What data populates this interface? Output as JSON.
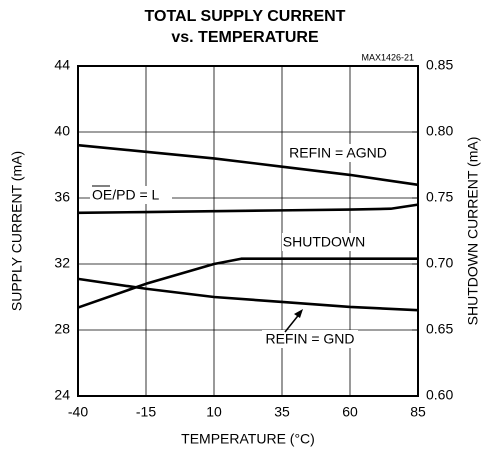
{
  "chart_data": {
    "type": "line",
    "title": [
      "TOTAL SUPPLY CURRENT",
      "vs. TEMPERATURE"
    ],
    "code": "MAX1426-21",
    "xlabel": "TEMPERATURE (°C)",
    "ylabel": "SUPPLY CURRENT (mA)",
    "y2label": "SHUTDOWN CURRENT (mA)",
    "xlim": [
      -40,
      85
    ],
    "xticks": [
      -40,
      -15,
      10,
      35,
      60,
      85
    ],
    "ylim": [
      24,
      44
    ],
    "yticks": [
      24,
      28,
      32,
      36,
      40,
      44
    ],
    "y2lim": [
      0.6,
      0.85
    ],
    "y2ticks": [
      {
        "value": 0.6,
        "label": "0.60"
      },
      0.65,
      {
        "value": 0.7,
        "label": "0.70"
      },
      0.75,
      {
        "value": 0.8,
        "label": "0.80"
      },
      0.85
    ],
    "grid": true,
    "series": [
      {
        "name": "REFIN = AGND",
        "color": "#000000",
        "x": [
          -40,
          -15,
          10,
          35,
          60,
          85
        ],
        "values": [
          39.2,
          38.8,
          38.4,
          37.9,
          37.4,
          36.8
        ]
      },
      {
        "name": "OE/PD = L",
        "color": "#000000",
        "x": [
          -40,
          -15,
          10,
          35,
          60,
          75,
          85
        ],
        "values": [
          35.1,
          35.15,
          35.2,
          35.25,
          35.3,
          35.35,
          35.6
        ]
      },
      {
        "name": "SHUTDOWN",
        "color": "#000000",
        "axis": "y2",
        "x": [
          -40,
          -15,
          10,
          20,
          35,
          60,
          85
        ],
        "values": [
          0.667,
          0.685,
          0.7,
          0.704,
          0.704,
          0.704,
          0.704
        ]
      },
      {
        "name": "REFIN = GND",
        "color": "#000000",
        "x": [
          -40,
          -15,
          10,
          35,
          60,
          85
        ],
        "values": [
          31.1,
          30.5,
          30.0,
          29.7,
          29.4,
          29.2
        ]
      }
    ]
  }
}
